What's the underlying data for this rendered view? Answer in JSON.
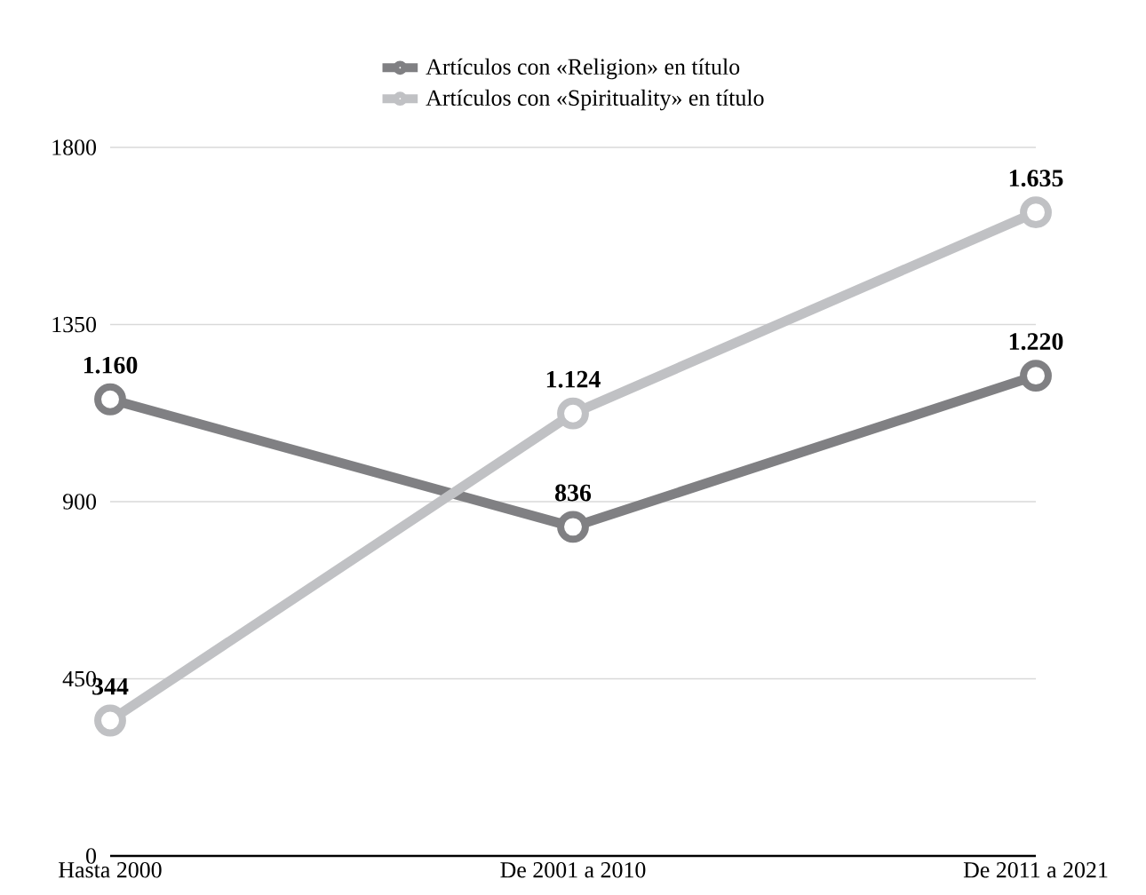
{
  "chart_data": {
    "type": "line",
    "categories": [
      "Hasta 2000",
      "De 2001 a 2010",
      "De 2011 a 2021"
    ],
    "series": [
      {
        "name": "Artículos con «Religion» en título",
        "color": "#808083",
        "values": [
          1160,
          836,
          1220
        ],
        "value_labels": [
          "1.160",
          "836",
          "1.220"
        ]
      },
      {
        "name": "Artículos con «Spirituality» en título",
        "color": "#c0c1c4",
        "values": [
          344,
          1124,
          1635
        ],
        "value_labels": [
          "344",
          "1.124",
          "1.635"
        ]
      }
    ],
    "ylim": [
      0,
      1800
    ],
    "yticks": [
      0,
      450,
      900,
      1350,
      1800
    ],
    "grid": "y",
    "legend": "top",
    "marker": "circle",
    "line_style": "solid"
  }
}
